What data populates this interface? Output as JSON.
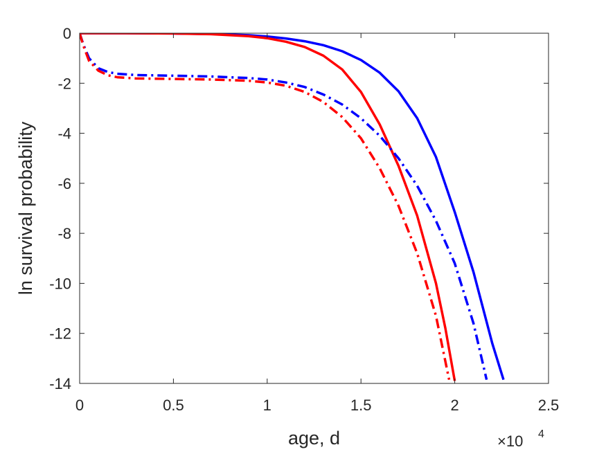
{
  "chart_data": {
    "type": "line",
    "title": "",
    "xlabel": "age, d",
    "ylabel": "ln survival probability",
    "x_scale_multiplier": "×10",
    "x_scale_exponent": "4",
    "xlim": [
      0,
      2.5
    ],
    "ylim": [
      -14,
      0
    ],
    "x_ticks": [
      {
        "value": 0,
        "label": "0"
      },
      {
        "value": 0.5,
        "label": "0.5"
      },
      {
        "value": 1,
        "label": "1"
      },
      {
        "value": 1.5,
        "label": "1.5"
      },
      {
        "value": 2,
        "label": "2"
      },
      {
        "value": 2.5,
        "label": "2.5"
      }
    ],
    "y_ticks": [
      {
        "value": 0,
        "label": "0"
      },
      {
        "value": -2,
        "label": "-2"
      },
      {
        "value": -4,
        "label": "-4"
      },
      {
        "value": -6,
        "label": "-6"
      },
      {
        "value": -8,
        "label": "-8"
      },
      {
        "value": -10,
        "label": "-10"
      },
      {
        "value": -12,
        "label": "-12"
      },
      {
        "value": -14,
        "label": "-14"
      }
    ],
    "grid": false,
    "legend": "none",
    "series": [
      {
        "color": "#0000ff",
        "style": "solid",
        "x": [
          0,
          0.25,
          0.5,
          0.7,
          0.9,
          1.0,
          1.1,
          1.2,
          1.3,
          1.4,
          1.5,
          1.6,
          1.7,
          1.8,
          1.9,
          2.0,
          2.1,
          2.2,
          2.26
        ],
        "y": [
          0,
          0,
          -0.01,
          -0.03,
          -0.08,
          -0.13,
          -0.21,
          -0.32,
          -0.48,
          -0.72,
          -1.07,
          -1.58,
          -2.32,
          -3.4,
          -4.95,
          -7.15,
          -9.55,
          -12.4,
          -13.85
        ]
      },
      {
        "color": "#ff0000",
        "style": "solid",
        "x": [
          0,
          0.25,
          0.5,
          0.7,
          0.9,
          1.0,
          1.1,
          1.2,
          1.3,
          1.4,
          1.5,
          1.6,
          1.7,
          1.8,
          1.9,
          1.95,
          2.0
        ],
        "y": [
          0,
          0,
          -0.01,
          -0.04,
          -0.12,
          -0.2,
          -0.34,
          -0.55,
          -0.9,
          -1.45,
          -2.35,
          -3.65,
          -5.3,
          -7.3,
          -10.0,
          -11.8,
          -13.9
        ]
      },
      {
        "color": "#0000ff",
        "style": "dashdot",
        "x": [
          0,
          0.02,
          0.05,
          0.1,
          0.15,
          0.2,
          0.3,
          0.5,
          0.7,
          0.9,
          1.0,
          1.1,
          1.2,
          1.3,
          1.4,
          1.5,
          1.6,
          1.7,
          1.8,
          1.9,
          2.0,
          2.1,
          2.17
        ],
        "y": [
          0,
          -0.45,
          -1.0,
          -1.4,
          -1.55,
          -1.62,
          -1.67,
          -1.7,
          -1.73,
          -1.79,
          -1.85,
          -1.97,
          -2.15,
          -2.45,
          -2.85,
          -3.4,
          -4.1,
          -5.0,
          -6.1,
          -7.5,
          -9.2,
          -11.6,
          -13.85
        ]
      },
      {
        "color": "#ff0000",
        "style": "dashdot",
        "x": [
          0,
          0.02,
          0.05,
          0.1,
          0.15,
          0.2,
          0.3,
          0.5,
          0.7,
          0.9,
          1.0,
          1.1,
          1.2,
          1.3,
          1.4,
          1.5,
          1.6,
          1.7,
          1.8,
          1.9,
          1.97
        ],
        "y": [
          0,
          -0.5,
          -1.1,
          -1.5,
          -1.68,
          -1.76,
          -1.81,
          -1.83,
          -1.85,
          -1.9,
          -1.97,
          -2.1,
          -2.35,
          -2.75,
          -3.35,
          -4.2,
          -5.4,
          -6.9,
          -8.8,
          -11.3,
          -13.85
        ]
      }
    ]
  }
}
